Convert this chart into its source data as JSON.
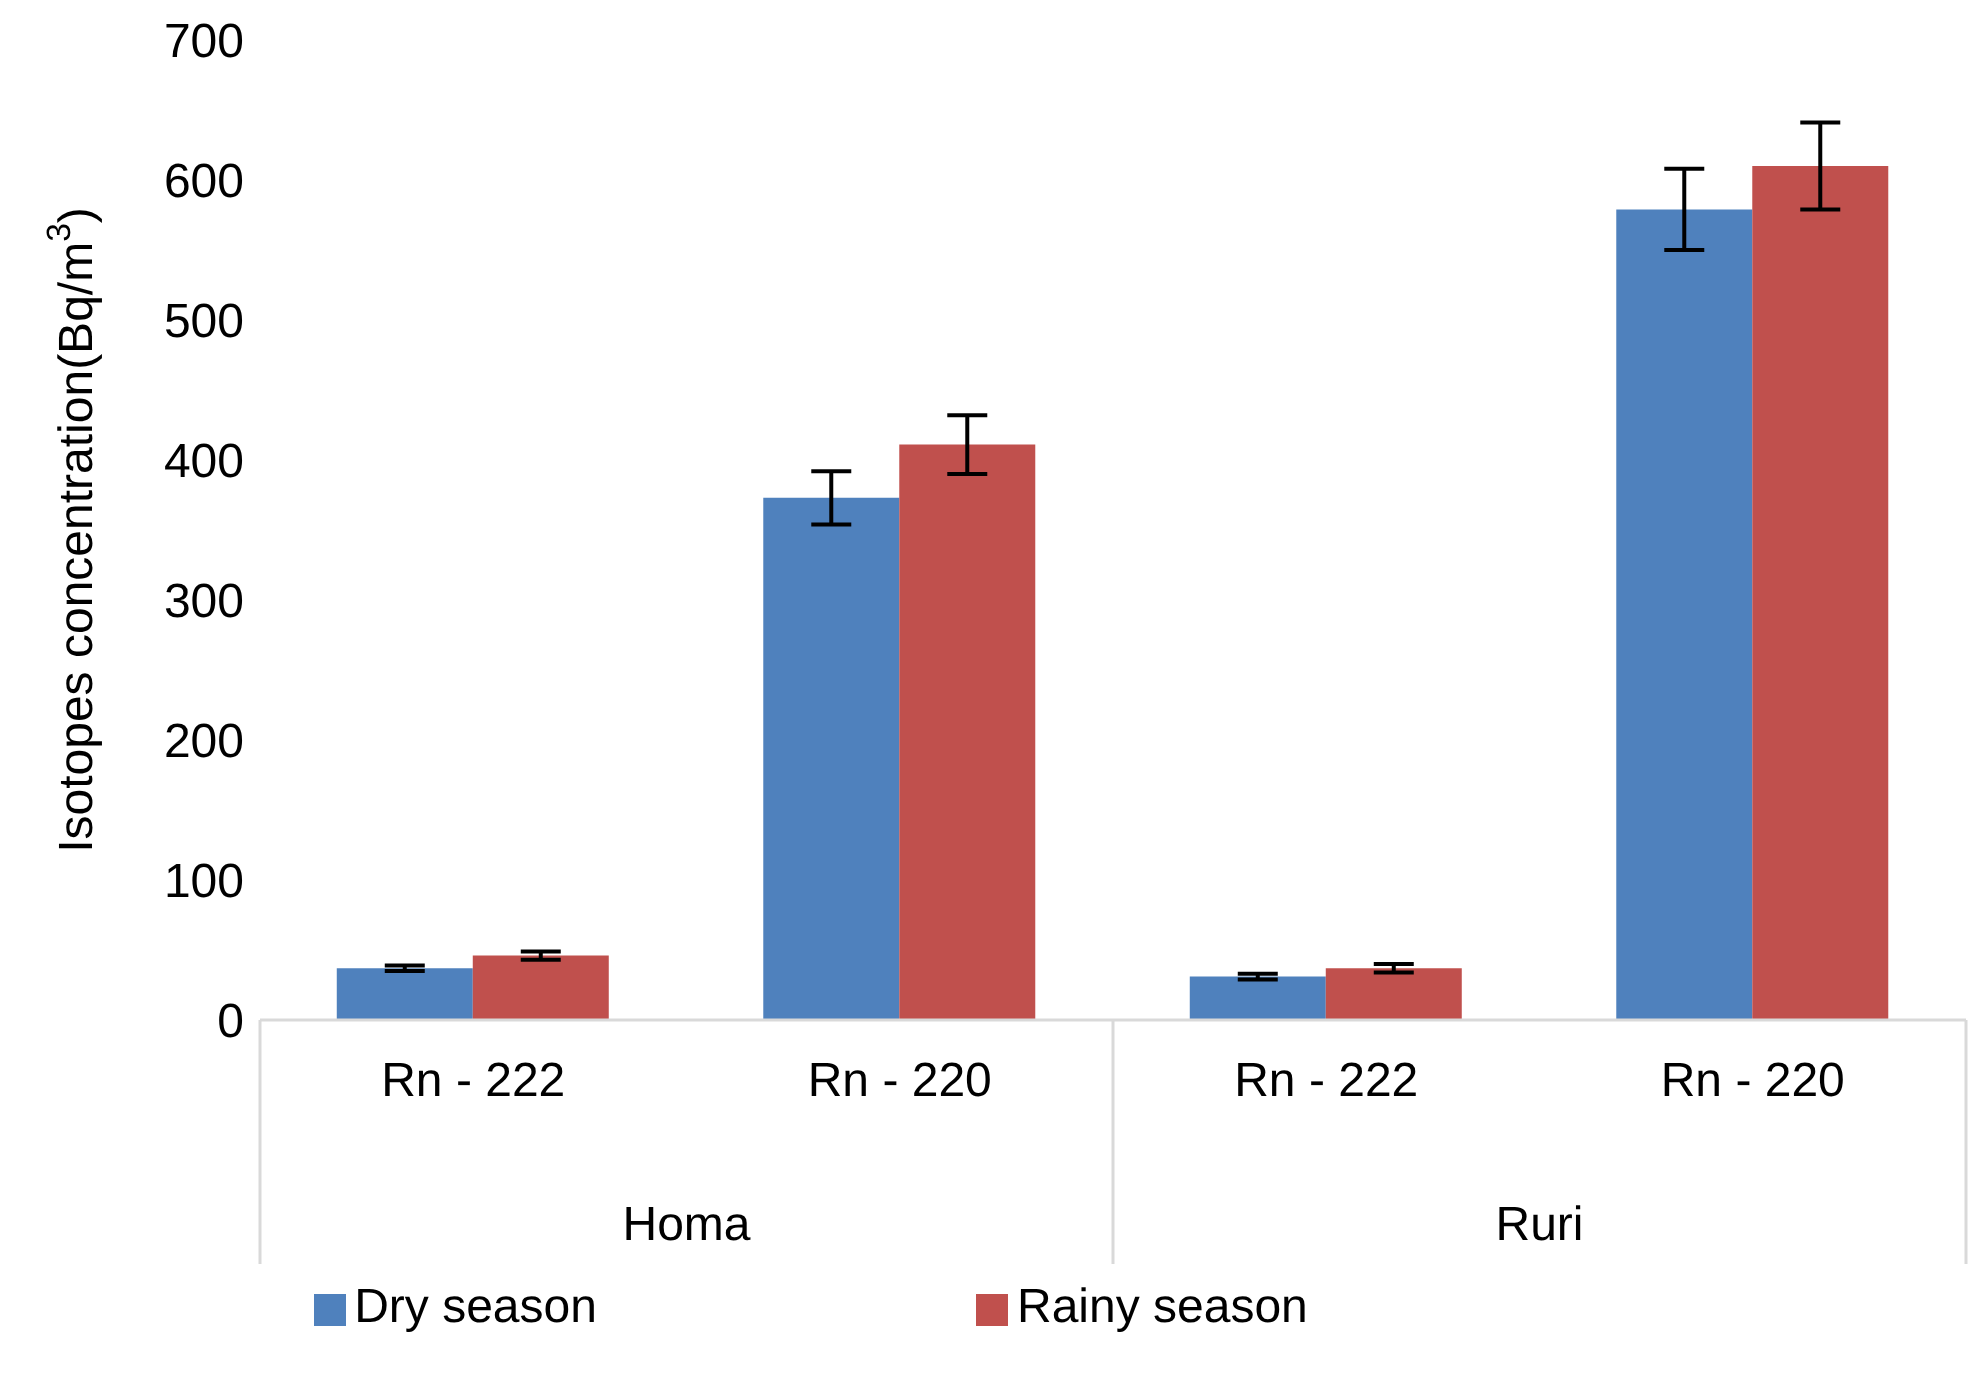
{
  "chart_data": {
    "type": "bar",
    "ylabel": "Isotopes concentration(Bq/m$^{3}$)",
    "categories": [
      "Rn - 222",
      "Rn - 220",
      "Rn - 222",
      "Rn - 220"
    ],
    "annotations": [
      "Homa",
      "Ruri"
    ],
    "series": [
      {
        "name": "Dry season",
        "color": "#4f81bd",
        "values": [
          37,
          373,
          31,
          579
        ],
        "errors": [
          2,
          19,
          2,
          29
        ]
      },
      {
        "name": "Rainy season",
        "color": "#c0504d",
        "values": [
          46,
          411,
          37,
          610
        ],
        "errors": [
          3,
          21,
          3,
          31
        ]
      }
    ],
    "ylim": [
      0,
      700
    ],
    "yticks": [
      0,
      100,
      200,
      300,
      400,
      500,
      600,
      700
    ],
    "grid": false,
    "legend": "bottom"
  }
}
